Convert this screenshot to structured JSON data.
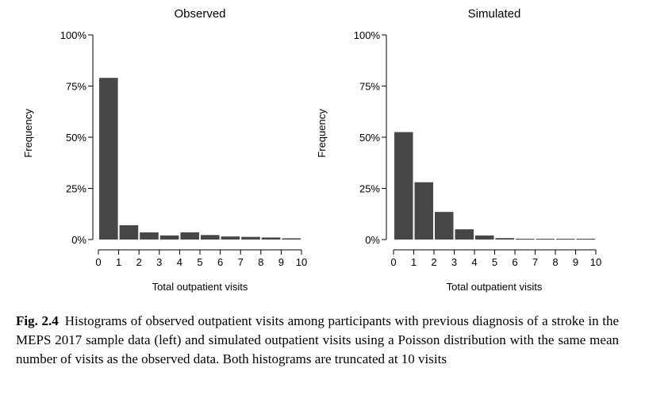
{
  "chart_data": [
    {
      "type": "bar",
      "title": "Observed",
      "xlabel": "Total outpatient visits",
      "ylabel": "Frequency",
      "x": [
        0,
        1,
        2,
        3,
        4,
        5,
        6,
        7,
        8,
        9
      ],
      "values": [
        0.79,
        0.07,
        0.035,
        0.02,
        0.035,
        0.022,
        0.015,
        0.013,
        0.01,
        0.006
      ],
      "xticks": [
        0,
        1,
        2,
        3,
        4,
        5,
        6,
        7,
        8,
        9,
        10
      ],
      "yticks": [
        0,
        0.25,
        0.5,
        0.75,
        1.0
      ],
      "ytick_labels": [
        "0%",
        "25%",
        "50%",
        "75%",
        "100%"
      ],
      "xlim": [
        0,
        10
      ],
      "ylim": [
        0,
        1.0
      ],
      "bar_color": "#474747",
      "grid": false
    },
    {
      "type": "bar",
      "title": "Simulated",
      "xlabel": "Total outpatient visits",
      "ylabel": "Frequency",
      "x": [
        0,
        1,
        2,
        3,
        4,
        5,
        6,
        7,
        8,
        9
      ],
      "values": [
        0.525,
        0.28,
        0.135,
        0.05,
        0.02,
        0.007,
        0.003,
        0.002,
        0.001,
        0.001
      ],
      "xticks": [
        0,
        1,
        2,
        3,
        4,
        5,
        6,
        7,
        8,
        9,
        10
      ],
      "yticks": [
        0,
        0.25,
        0.5,
        0.75,
        1.0
      ],
      "ytick_labels": [
        "0%",
        "25%",
        "50%",
        "75%",
        "100%"
      ],
      "xlim": [
        0,
        10
      ],
      "ylim": [
        0,
        1.0
      ],
      "bar_color": "#474747",
      "grid": false
    }
  ],
  "caption": {
    "label": "Fig. 2.4",
    "text": "Histograms of observed outpatient visits among participants with previous diagnosis of a stroke in the MEPS 2017 sample data (left) and simulated outpatient visits using a Poisson distribution with the same mean number of visits as the observed data. Both histograms are truncated at 10 visits"
  }
}
